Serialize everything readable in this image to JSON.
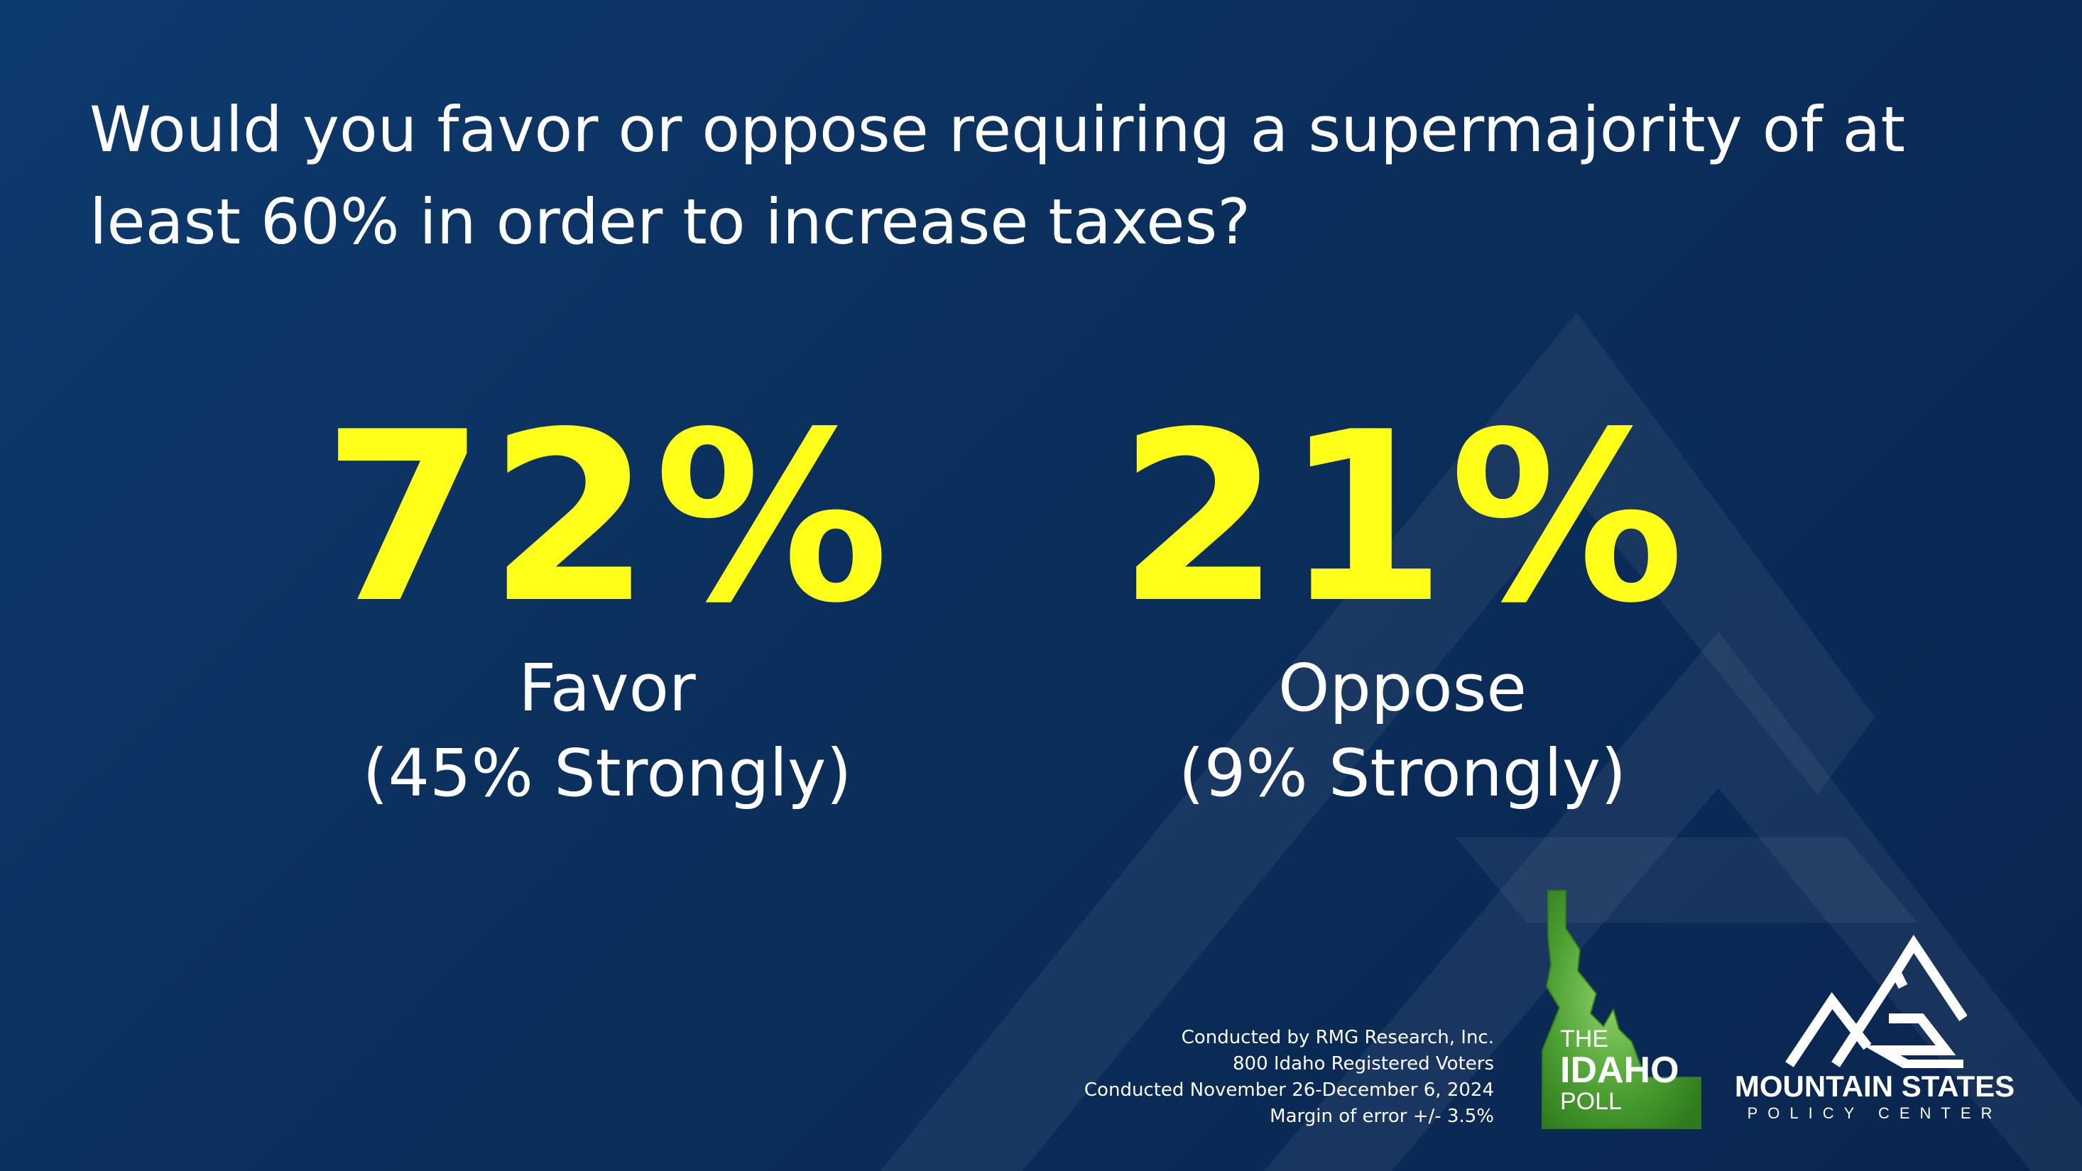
{
  "question": "Would you favor or oppose requiring a supermajority of at least 60% in order to increase taxes?",
  "results": {
    "favor": {
      "percent": "72%",
      "label": "Favor",
      "strongly": "(45% Strongly)"
    },
    "oppose": {
      "percent": "21%",
      "label": "Oppose",
      "strongly": "(9% Strongly)"
    }
  },
  "methodology": {
    "line1": "Conducted by RMG Research, Inc.",
    "line2": "800 Idaho Registered Voters",
    "line3": "Conducted November 26-December 6, 2024",
    "line4": "Margin of error +/- 3.5%"
  },
  "idaho_poll_logo": {
    "line1": "THE",
    "line2": "IDAHO",
    "line3": "POLL"
  },
  "msp_logo": {
    "name": "MOUNTAIN STATES",
    "sub": "POLICY CENTER"
  },
  "colors": {
    "background": "#0b2f5c",
    "accent_yellow": "#ffff1a",
    "idaho_green": "#4a9e2f",
    "text": "#ffffff"
  }
}
